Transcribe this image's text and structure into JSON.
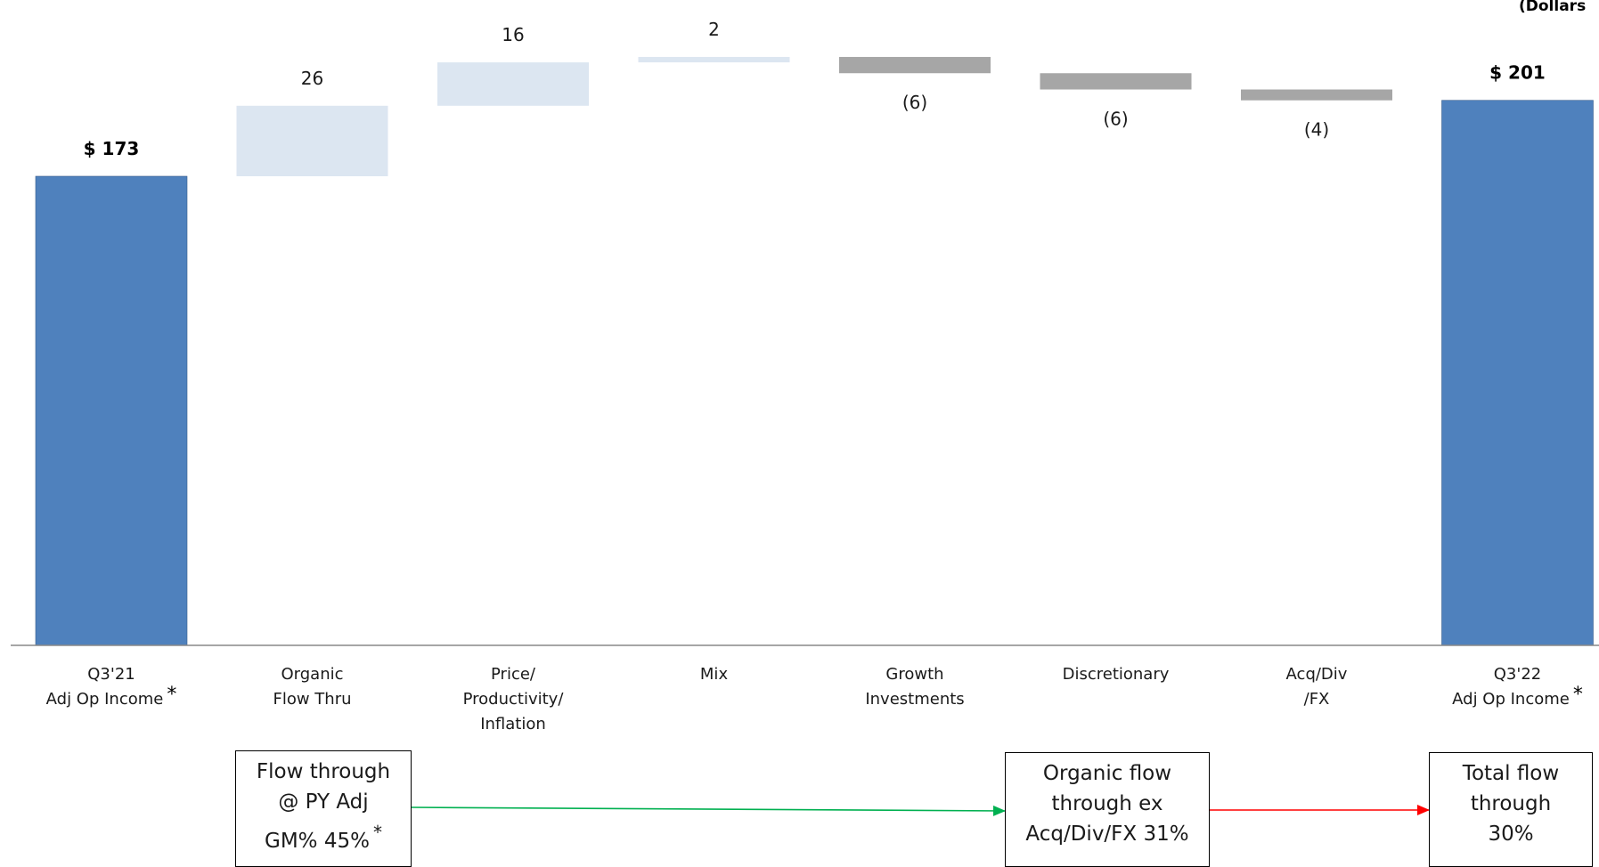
{
  "units_label": "(Dollars",
  "chart_data": {
    "type": "bar",
    "subtype": "waterfall",
    "ylim": [
      0,
      238
    ],
    "grid": false,
    "legend": "none",
    "colors": {
      "total": "#4f81bd",
      "increase": "#dce6f1",
      "decrease": "#a6a6a6",
      "axis": "#888888"
    },
    "bars": [
      {
        "category_lines": [
          "Q3'21",
          "Adj Op Income"
        ],
        "starred": true,
        "kind": "total",
        "value": 173,
        "label": "$ 173"
      },
      {
        "category_lines": [
          "Organic",
          "Flow Thru"
        ],
        "starred": false,
        "kind": "increase",
        "value": 26,
        "label": "26"
      },
      {
        "category_lines": [
          "Price/",
          "Productivity/",
          "Inflation"
        ],
        "starred": false,
        "kind": "increase",
        "value": 16,
        "label": "16"
      },
      {
        "category_lines": [
          "Mix"
        ],
        "starred": false,
        "kind": "increase",
        "value": 2,
        "label": "2"
      },
      {
        "category_lines": [
          "Growth",
          "Investments"
        ],
        "starred": false,
        "kind": "decrease",
        "value": -6,
        "label": "(6)"
      },
      {
        "category_lines": [
          "Discretionary"
        ],
        "starred": false,
        "kind": "decrease",
        "value": -6,
        "label": "(6)"
      },
      {
        "category_lines": [
          "Acq/Div",
          "/FX"
        ],
        "starred": false,
        "kind": "decrease",
        "value": -4,
        "label": "(4)"
      },
      {
        "category_lines": [
          "Q3'22",
          "Adj Op Income"
        ],
        "starred": true,
        "kind": "total",
        "value": 201,
        "label": "$ 201"
      }
    ]
  },
  "flow_boxes": [
    {
      "lines": [
        "Flow through",
        "@ PY Adj",
        "GM% 45%"
      ],
      "starred": true
    },
    {
      "lines": [
        "Organic flow",
        "through ex",
        "Acq/Div/FX 31%"
      ],
      "starred": false
    },
    {
      "lines": [
        "Total flow",
        "through",
        "30%"
      ],
      "starred": false
    }
  ],
  "arrows": [
    {
      "from": 0,
      "to": 1,
      "color": "#00b050"
    },
    {
      "from": 1,
      "to": 2,
      "color": "#ff0000"
    }
  ],
  "star_symbol": "*"
}
